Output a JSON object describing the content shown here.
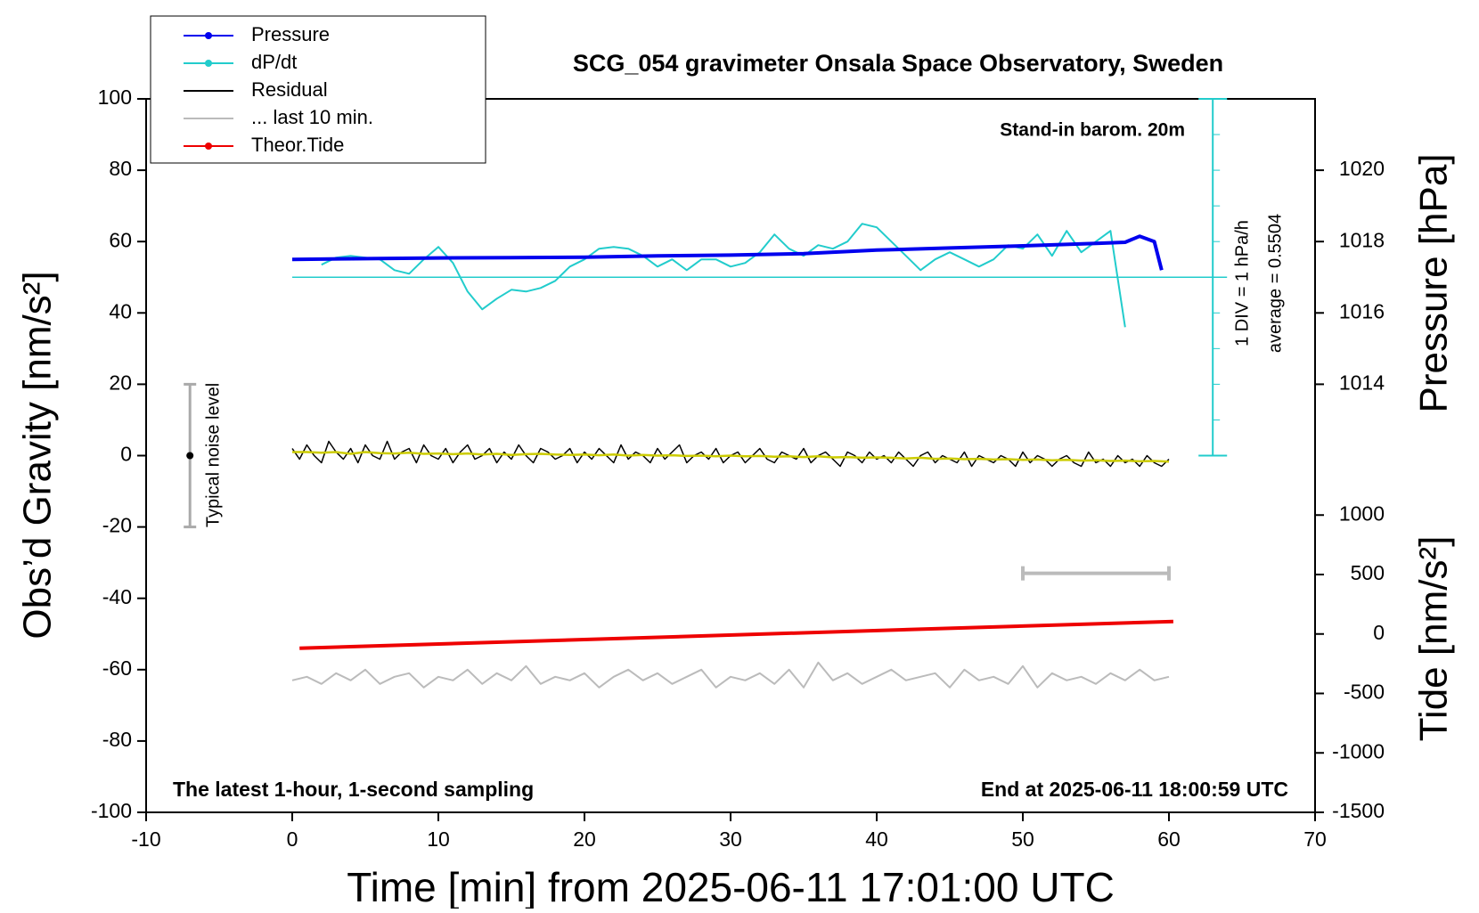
{
  "chart_data": {
    "type": "line",
    "title": "SCG_054 gravimeter Onsala Space Observatory, Sweden",
    "xlabel": "Time [min] from 2025-06-11 17:01:00 UTC",
    "ylabel": "Obs’d Gravity [nm/s²]",
    "y2label": "Pressure [hPa]",
    "y3label": "Tide [nm/s²]",
    "annotations": {
      "station": "Stand-in barom. 20m",
      "sampling": "The latest 1-hour, 1-second sampling",
      "end": "End at 2025-06-11 18:00:59 UTC",
      "div": "1 DIV = 1 hPa/h"
    },
    "xlim": [
      -10,
      70
    ],
    "xticks": [
      -10,
      0,
      10,
      20,
      30,
      40,
      50,
      60,
      70
    ],
    "ylim": [
      -100,
      100
    ],
    "yticks": [
      -100,
      -80,
      -60,
      -40,
      -20,
      0,
      20,
      40,
      60,
      80,
      100
    ],
    "y2lim": [
      1002,
      1022
    ],
    "y2ticks": [
      1014,
      1016,
      1018,
      1020
    ],
    "y3lim": [
      -1500,
      4500
    ],
    "y3ticks": [
      -1500,
      -1000,
      -500,
      0,
      500,
      1000
    ],
    "dpdt_lim": [
      -14.4496,
      5.5504
    ],
    "dpdt_ticks": [
      -4.4496,
      -3.4496,
      -2.4496,
      -1.4496,
      -0.4496,
      0.5504,
      1.5504,
      2.5504,
      3.5504,
      4.5504,
      5.5504
    ],
    "dpdt_average": {
      "value": 0.5504,
      "label": "average = 0.5504"
    },
    "noise_level": {
      "label": "Typical noise level",
      "x": -7,
      "values": [
        -20,
        0,
        20
      ],
      "color": "#aaaaaa"
    },
    "last_window": {
      "x": [
        50,
        60
      ],
      "y": -33,
      "color": "#bbbbbb"
    },
    "series": [
      {
        "name": "Pressure",
        "color": "#0000ee",
        "axis": "y2",
        "marker": true,
        "width": 4,
        "x": [
          0,
          5,
          10,
          15,
          20,
          25,
          30,
          35,
          40,
          45,
          50,
          55,
          57,
          58,
          59,
          59.5
        ],
        "values": [
          1017.5,
          1017.52,
          1017.54,
          1017.55,
          1017.56,
          1017.6,
          1017.62,
          1017.66,
          1017.76,
          1017.82,
          1017.88,
          1017.95,
          1017.98,
          1018.15,
          1018.0,
          1017.2
        ]
      },
      {
        "name": "dP/dt",
        "color": "#22cccc",
        "axis": "dpdt",
        "marker": true,
        "width": 2,
        "x": [
          2,
          3,
          4,
          5,
          6,
          7,
          8,
          9,
          10,
          11,
          12,
          13,
          14,
          15,
          16,
          17,
          18,
          19,
          20,
          21,
          22,
          23,
          24,
          25,
          26,
          27,
          28,
          29,
          30,
          31,
          32,
          33,
          34,
          35,
          36,
          37,
          38,
          39,
          40,
          41,
          42,
          43,
          44,
          45,
          46,
          47,
          48,
          49,
          50,
          51,
          52,
          53,
          54,
          55,
          56,
          57
        ],
        "values": [
          0.9,
          1.1,
          1.15,
          1.1,
          1.05,
          0.75,
          0.65,
          1.05,
          1.4,
          0.95,
          0.15,
          -0.35,
          -0.05,
          0.2,
          0.15,
          0.25,
          0.45,
          0.85,
          1.05,
          1.35,
          1.4,
          1.35,
          1.15,
          0.85,
          1.05,
          0.75,
          1.05,
          1.05,
          0.85,
          0.95,
          1.25,
          1.75,
          1.35,
          1.15,
          1.45,
          1.35,
          1.55,
          2.05,
          1.95,
          1.55,
          1.15,
          0.75,
          1.05,
          1.25,
          1.05,
          0.85,
          1.05,
          1.45,
          1.35,
          1.75,
          1.15,
          1.85,
          1.25,
          1.55,
          1.85,
          -0.85
        ]
      },
      {
        "name": "Residual",
        "color": "#000000",
        "axis": "y",
        "marker": false,
        "width": 1.5,
        "x": [
          0,
          0.5,
          1,
          1.5,
          2,
          2.5,
          3,
          3.5,
          4,
          4.5,
          5,
          5.5,
          6,
          6.5,
          7,
          7.5,
          8,
          8.5,
          9,
          9.5,
          10,
          10.5,
          11,
          11.5,
          12,
          12.5,
          13,
          13.5,
          14,
          14.5,
          15,
          15.5,
          16,
          16.5,
          17,
          17.5,
          18,
          18.5,
          19,
          19.5,
          20,
          20.5,
          21,
          21.5,
          22,
          22.5,
          23,
          23.5,
          24,
          24.5,
          25,
          25.5,
          26,
          26.5,
          27,
          27.5,
          28,
          28.5,
          29,
          29.5,
          30,
          30.5,
          31,
          31.5,
          32,
          32.5,
          33,
          33.5,
          34,
          34.5,
          35,
          35.5,
          36,
          36.5,
          37,
          37.5,
          38,
          38.5,
          39,
          39.5,
          40,
          40.5,
          41,
          41.5,
          42,
          42.5,
          43,
          43.5,
          44,
          44.5,
          45,
          45.5,
          46,
          46.5,
          47,
          47.5,
          48,
          48.5,
          49,
          49.5,
          50,
          50.5,
          51,
          51.5,
          52,
          52.5,
          53,
          53.5,
          54,
          54.5,
          55,
          55.5,
          56,
          56.5,
          57,
          57.5,
          58,
          58.5,
          59,
          59.5,
          60
        ],
        "values": [
          2,
          -1,
          3,
          0,
          -2,
          4,
          1,
          -1,
          2,
          -2,
          3,
          0,
          -1,
          4,
          -1,
          1,
          2,
          -2,
          3,
          0,
          -1,
          2,
          -2,
          1,
          3,
          -1,
          0,
          2,
          -2,
          1,
          -1,
          3,
          0,
          -2,
          2,
          1,
          -1,
          0,
          2,
          -2,
          1,
          -1,
          2,
          0,
          -2,
          3,
          -1,
          1,
          0,
          -2,
          2,
          -1,
          1,
          3,
          -2,
          0,
          1,
          -1,
          2,
          -2,
          0,
          1,
          -2,
          0,
          2,
          -1,
          -2,
          1,
          0,
          -1,
          2,
          -2,
          0,
          1,
          -1,
          -3,
          1,
          0,
          -2,
          1,
          -1,
          0,
          -2,
          1,
          -1,
          -3,
          0,
          1,
          -2,
          0,
          -1,
          -2,
          1,
          -3,
          0,
          -1,
          -2,
          0,
          -1,
          -3,
          1,
          -2,
          0,
          -1,
          -3,
          -1,
          0,
          -2,
          -3,
          1,
          -2,
          -1,
          -3,
          0,
          -2,
          -1,
          -3,
          0,
          -2,
          -3,
          -1
        ],
        "smoothed": {
          "color": "#cccc00",
          "x": [
            0,
            1,
            2,
            3,
            4,
            5,
            6,
            7,
            8,
            9,
            10,
            11,
            12,
            13,
            14,
            15,
            16,
            17,
            18,
            19,
            20,
            21,
            22,
            23,
            24,
            25,
            26,
            27,
            28,
            29,
            30,
            31,
            32,
            33,
            34,
            35,
            36,
            37,
            38,
            39,
            40,
            41,
            42,
            43,
            44,
            45,
            46,
            47,
            48,
            49,
            50,
            51,
            52,
            53,
            54,
            55,
            56,
            57,
            58,
            59,
            60
          ],
          "values": [
            1,
            1,
            0.8,
            1,
            0.5,
            1,
            0.7,
            0.6,
            0.8,
            0.5,
            0.6,
            0.4,
            0.6,
            0.3,
            0.5,
            0.2,
            0.4,
            0.5,
            0.3,
            0.2,
            0.3,
            0.1,
            0.3,
            0,
            0.2,
            0,
            0.1,
            -0.1,
            0,
            -0.2,
            0,
            -0.2,
            -0.1,
            -0.3,
            -0.2,
            -0.4,
            -0.2,
            -0.5,
            -0.4,
            -0.6,
            -0.5,
            -0.6,
            -0.8,
            -0.6,
            -0.9,
            -0.8,
            -1,
            -0.9,
            -1.1,
            -1,
            -1.2,
            -1.1,
            -1.3,
            -1.2,
            -1.4,
            -1.3,
            -1.5,
            -1.4,
            -1.6,
            -1.5,
            -1.7
          ]
        }
      },
      {
        "name": "... last 10 min.",
        "color": "#bbbbbb",
        "axis": "y",
        "marker": false,
        "width": 2,
        "x": [
          0,
          1,
          2,
          3,
          4,
          5,
          6,
          7,
          8,
          9,
          10,
          11,
          12,
          13,
          14,
          15,
          16,
          17,
          18,
          19,
          20,
          21,
          22,
          23,
          24,
          25,
          26,
          27,
          28,
          29,
          30,
          31,
          32,
          33,
          34,
          35,
          36,
          37,
          38,
          39,
          40,
          41,
          42,
          43,
          44,
          45,
          46,
          47,
          48,
          49,
          50,
          51,
          52,
          53,
          54,
          55,
          56,
          57,
          58,
          59,
          60
        ],
        "values": [
          -63,
          -62,
          -64,
          -61,
          -63,
          -60,
          -64,
          -62,
          -61,
          -65,
          -62,
          -63,
          -60,
          -64,
          -61,
          -63,
          -59,
          -64,
          -62,
          -63,
          -61,
          -65,
          -62,
          -60,
          -63,
          -61,
          -64,
          -62,
          -60,
          -65,
          -62,
          -63,
          -61,
          -64,
          -60,
          -65,
          -58,
          -63,
          -61,
          -64,
          -62,
          -60,
          -63,
          -62,
          -61,
          -65,
          -60,
          -63,
          -62,
          -64,
          -59,
          -65,
          -61,
          -63,
          -62,
          -64,
          -61,
          -63,
          -60,
          -63,
          -62
        ]
      },
      {
        "name": "Theor.Tide",
        "color": "#ee0000",
        "axis": "y3",
        "marker": true,
        "width": 4,
        "x": [
          0.5,
          60.3
        ],
        "values": [
          -120,
          105
        ]
      }
    ]
  }
}
